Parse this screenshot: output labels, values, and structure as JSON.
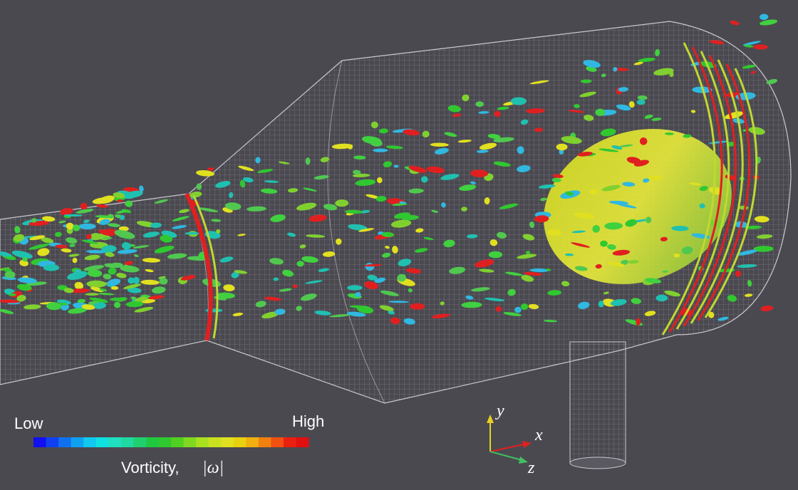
{
  "legend": {
    "low": "Low",
    "high": "High",
    "label": "Vorticity,",
    "symbol": "|ω|"
  },
  "axes": {
    "y": "y",
    "x": "x",
    "z": "z"
  }
}
